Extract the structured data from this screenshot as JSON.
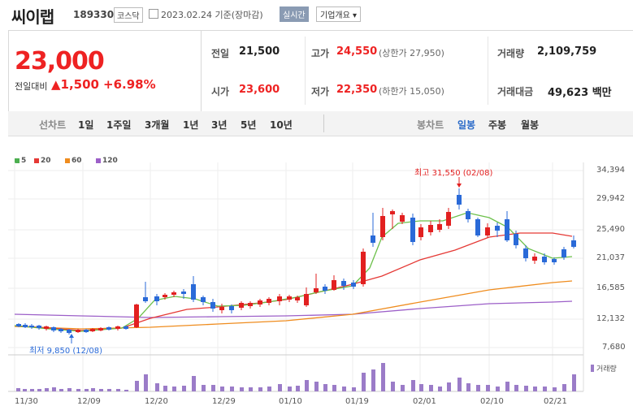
{
  "header": {
    "name": "씨이랩",
    "code": "189330",
    "market": "코스닥",
    "date": "2023.02.24 기준(장마감)",
    "realtime": "실시간",
    "company_info": "기업개요 ▾"
  },
  "quote": {
    "price": "23,000",
    "diff_label": "전일대비",
    "diff_value": "▲1,500",
    "rate": "+6.98%",
    "prev_label": "전일",
    "prev": "21,500",
    "open_label": "시가",
    "open": "23,600",
    "high_label": "고가",
    "high": "24,550",
    "upper_limit": "(상한가 27,950)",
    "low_label": "저가",
    "low": "22,350",
    "lower_limit": "(하한가 15,050)",
    "volume_label": "거래량",
    "volume": "2,109,759",
    "amount_label": "거래대금",
    "amount": "49,623 백만"
  },
  "tabs": {
    "range_label": "선차트",
    "ranges": [
      "1일",
      "1주일",
      "3개월",
      "1년",
      "3년",
      "5년",
      "10년"
    ],
    "candle_label": "봉차트",
    "candles": [
      "일봉",
      "주봉",
      "월봉"
    ],
    "selected_candle": "일봉"
  },
  "legend": [
    {
      "label": "5",
      "color": "#4caf50"
    },
    {
      "label": "20",
      "color": "#e53935"
    },
    {
      "label": "60",
      "color": "#ef8c1e"
    },
    {
      "label": "120",
      "color": "#9c5fc8"
    }
  ],
  "chart_data": {
    "type": "candlestick",
    "y_ticks": [
      "34,394",
      "29,942",
      "25,490",
      "21,037",
      "16,585",
      "12,132",
      "7,680"
    ],
    "x_ticks": [
      "11/30",
      "12/09",
      "12/20",
      "12/29",
      "01/10",
      "01/19",
      "02/01",
      "02/10",
      "02/21"
    ],
    "high_annotation": "최고 31,550 (02/08)",
    "low_annotation": "최저 9,850 (12/08)",
    "volume_label": "거래량",
    "up_color": "#e22020",
    "down_color": "#2a6ad8"
  }
}
